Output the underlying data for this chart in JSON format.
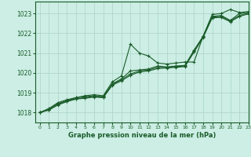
{
  "background_color": "#cceee4",
  "grid_color": "#aad4c8",
  "line_color": "#1a5c2a",
  "title": "Graphe pression niveau de la mer (hPa)",
  "xlim": [
    -0.5,
    23
  ],
  "ylim": [
    1017.5,
    1023.6
  ],
  "yticks": [
    1018,
    1019,
    1020,
    1021,
    1022,
    1023
  ],
  "xticks": [
    0,
    1,
    2,
    3,
    4,
    5,
    6,
    7,
    8,
    9,
    10,
    11,
    12,
    13,
    14,
    15,
    16,
    17,
    18,
    19,
    20,
    21,
    22,
    23
  ],
  "series": [
    [
      1018.0,
      1018.2,
      1018.5,
      1018.65,
      1018.75,
      1018.85,
      1018.9,
      1018.85,
      1019.55,
      1019.85,
      1021.45,
      1021.0,
      1020.85,
      1020.5,
      1020.45,
      1020.5,
      1020.55,
      1020.55,
      1021.85,
      1022.95,
      1023.0,
      1023.2,
      1023.05,
      1023.1
    ],
    [
      1018.0,
      1018.15,
      1018.45,
      1018.6,
      1018.75,
      1018.8,
      1018.85,
      1018.8,
      1019.45,
      1019.7,
      1020.1,
      1020.15,
      1020.2,
      1020.35,
      1020.3,
      1020.35,
      1020.38,
      1021.15,
      1021.85,
      1022.85,
      1022.9,
      1022.65,
      1023.0,
      1023.05
    ],
    [
      1018.0,
      1018.15,
      1018.42,
      1018.58,
      1018.7,
      1018.75,
      1018.82,
      1018.78,
      1019.42,
      1019.65,
      1019.95,
      1020.1,
      1020.15,
      1020.28,
      1020.28,
      1020.32,
      1020.35,
      1021.1,
      1021.82,
      1022.82,
      1022.85,
      1022.62,
      1022.9,
      1023.02
    ],
    [
      1018.0,
      1018.12,
      1018.38,
      1018.55,
      1018.68,
      1018.72,
      1018.78,
      1018.75,
      1019.38,
      1019.6,
      1019.88,
      1020.05,
      1020.1,
      1020.22,
      1020.25,
      1020.28,
      1020.32,
      1021.05,
      1021.78,
      1022.78,
      1022.8,
      1022.58,
      1022.85,
      1022.98
    ]
  ]
}
